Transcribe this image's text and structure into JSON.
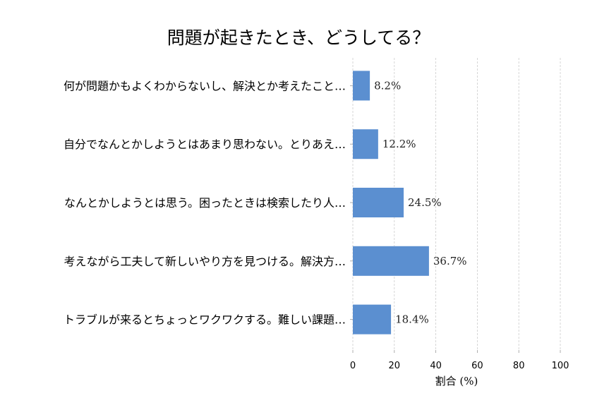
{
  "chart_data": {
    "type": "bar",
    "orientation": "horizontal",
    "title": "問題が起きたとき、どうしてる？",
    "xlabel": "割合 (%)",
    "ylabel": "",
    "xlim": [
      0,
      100
    ],
    "xticks": [
      "0",
      "20",
      "40",
      "60",
      "80",
      "100"
    ],
    "grid": "vertical dashed",
    "bar_color": "#5b8fd0",
    "categories": [
      "何が問題かもよくわからないし、解決とか考えたこと…",
      "自分でなんとかしようとはあまり思わない。とりあえ…",
      "なんとかしようとは思う。困ったときは検索したり人…",
      "考えながら工夫して新しいやり方を見つける。解決方…",
      "トラブルが来るとちょっとワクワクする。難しい課題…"
    ],
    "values": [
      8.2,
      12.2,
      24.5,
      36.7,
      18.4
    ],
    "data_labels": [
      "8.2%",
      "12.2%",
      "24.5%",
      "36.7%",
      "18.4%"
    ]
  }
}
